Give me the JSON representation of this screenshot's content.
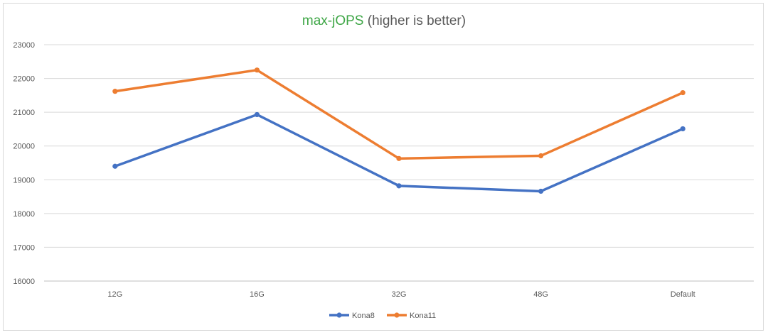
{
  "chart_data": {
    "type": "line",
    "title_accent": "max-jOPS",
    "title_rest": " (higher is better)",
    "categories": [
      "12G",
      "16G",
      "32G",
      "48G",
      "Default"
    ],
    "series": [
      {
        "name": "Kona8",
        "color": "#4472c4",
        "values": [
          19400,
          20930,
          18820,
          18660,
          20510
        ]
      },
      {
        "name": "Kona11",
        "color": "#ed7d31",
        "values": [
          21620,
          22250,
          19630,
          19710,
          21580
        ]
      }
    ],
    "yticks": [
      16000,
      17000,
      18000,
      19000,
      20000,
      21000,
      22000,
      23000
    ],
    "ylim": [
      16000,
      23000
    ],
    "xlabel": "",
    "ylabel": "",
    "grid": true,
    "legend": "bottom-center"
  }
}
